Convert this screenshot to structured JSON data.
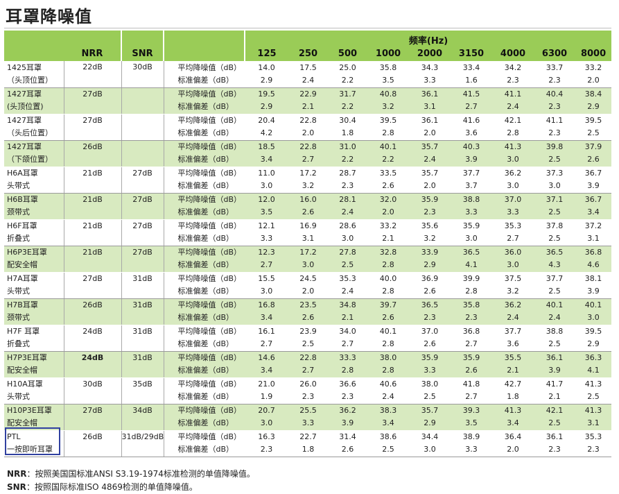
{
  "title": "耳罩降噪值",
  "header": {
    "nrr": "NRR",
    "snr": "SNR",
    "frequency_label": "频率(Hz)",
    "frequencies": [
      "125",
      "250",
      "500",
      "1000",
      "2000",
      "3150",
      "4000",
      "6300",
      "8000"
    ]
  },
  "rows": [
    {
      "name1": "1425耳罩",
      "name2": "（头顶位置）",
      "nrr": "22dB",
      "snr": "30dB",
      "m": [
        "14.0",
        "17.5",
        "25.0",
        "35.8",
        "34.3",
        "33.4",
        "34.2",
        "33.7",
        "33.2"
      ],
      "s": [
        "2.9",
        "2.4",
        "2.2",
        "3.5",
        "3.3",
        "1.6",
        "2.3",
        "2.3",
        "2.0"
      ]
    },
    {
      "name1": "1427耳罩",
      "name2": "(头顶位置)",
      "nrr": "27dB",
      "snr": "",
      "m": [
        "19.5",
        "22.9",
        "31.7",
        "40.8",
        "36.1",
        "41.5",
        "41.1",
        "40.4",
        "38.4"
      ],
      "s": [
        "2.9",
        "2.1",
        "2.2",
        "3.2",
        "3.1",
        "2.7",
        "2.4",
        "2.3",
        "2.9"
      ]
    },
    {
      "name1": "1427耳罩",
      "name2": "（头后位置）",
      "nrr": "27dB",
      "snr": "",
      "m": [
        "20.4",
        "22.8",
        "30.4",
        "39.5",
        "36.1",
        "41.6",
        "42.1",
        "41.1",
        "39.5"
      ],
      "s": [
        "4.2",
        "2.0",
        "1.8",
        "2.8",
        "2.0",
        "3.6",
        "2.8",
        "2.3",
        "2.5"
      ]
    },
    {
      "name1": "1427耳罩",
      "name2": "（下颌位置）",
      "nrr": "26dB",
      "snr": "",
      "m": [
        "18.5",
        "22.8",
        "31.0",
        "40.1",
        "35.7",
        "40.3",
        "41.3",
        "39.8",
        "37.9"
      ],
      "s": [
        "3.4",
        "2.7",
        "2.2",
        "2.2",
        "2.4",
        "3.9",
        "3.0",
        "2.5",
        "2.6"
      ]
    },
    {
      "name1": "H6A耳罩",
      "name2": "头带式",
      "nrr": "21dB",
      "snr": "27dB",
      "m": [
        "11.0",
        "17.2",
        "28.7",
        "33.5",
        "35.7",
        "37.7",
        "36.2",
        "37.3",
        "36.7"
      ],
      "s": [
        "3.0",
        "3.2",
        "2.3",
        "2.6",
        "2.0",
        "3.7",
        "3.0",
        "3.0",
        "3.9"
      ]
    },
    {
      "name1": "H6B耳罩",
      "name2": "颈带式",
      "nrr": "21dB",
      "snr": "27dB",
      "m": [
        "12.0",
        "16.0",
        "28.1",
        "32.0",
        "35.9",
        "38.8",
        "37.0",
        "37.1",
        "36.7"
      ],
      "s": [
        "3.5",
        "2.6",
        "2.4",
        "2.0",
        "2.3",
        "3.3",
        "3.3",
        "2.5",
        "3.4"
      ]
    },
    {
      "name1": "H6F耳罩",
      "name2": "折叠式",
      "nrr": "21dB",
      "snr": "27dB",
      "m": [
        "12.1",
        "16.9",
        "28.6",
        "33.2",
        "35.6",
        "35.9",
        "35.3",
        "37.8",
        "37.2"
      ],
      "s": [
        "3.3",
        "3.1",
        "3.0",
        "2.1",
        "3.2",
        "3.0",
        "2.7",
        "2.5",
        "3.1"
      ]
    },
    {
      "name1": "H6P3E耳罩",
      "name2": "配安全帽",
      "nrr": "21dB",
      "snr": "27dB",
      "m": [
        "12.3",
        "17.2",
        "27.8",
        "32.8",
        "33.9",
        "36.5",
        "36.0",
        "36.5",
        "36.8"
      ],
      "s": [
        "2.7",
        "3.0",
        "2.5",
        "2.8",
        "2.9",
        "4.1",
        "3.0",
        "4.3",
        "4.6"
      ]
    },
    {
      "name1": "H7A耳罩",
      "name2": "头带式",
      "nrr": "27dB",
      "snr": "31dB",
      "m": [
        "15.5",
        "24.5",
        "35.3",
        "40.0",
        "36.9",
        "39.9",
        "37.5",
        "37.7",
        "38.1"
      ],
      "s": [
        "3.0",
        "2.0",
        "2.4",
        "2.8",
        "2.6",
        "2.8",
        "3.2",
        "2.5",
        "3.9"
      ]
    },
    {
      "name1": "H7B耳罩",
      "name2": "颈带式",
      "nrr": "26dB",
      "snr": "31dB",
      "m": [
        "16.8",
        "23.5",
        "34.8",
        "39.7",
        "36.5",
        "35.8",
        "36.2",
        "40.1",
        "40.1"
      ],
      "s": [
        "3.4",
        "2.6",
        "2.1",
        "2.6",
        "2.3",
        "2.3",
        "2.4",
        "2.4",
        "3.0"
      ]
    },
    {
      "name1": " H7F 耳罩",
      "name2": " 折叠式",
      "nrr": "24dB",
      "snr": "31dB",
      "m": [
        "16.1",
        "23.9",
        "34.0",
        "40.1",
        "37.0",
        "36.8",
        "37.7",
        "38.8",
        "39.5"
      ],
      "s": [
        "2.7",
        "2.5",
        "2.7",
        "2.8",
        "2.6",
        "2.7",
        "3.6",
        "2.5",
        "2.9"
      ]
    },
    {
      "name1": "H7P3E耳罩",
      "name2": "配安全帽",
      "nrr": "24dB",
      "snr": "31dB",
      "nrr_bold": true,
      "m": [
        "14.6",
        "22.8",
        "33.3",
        "38.0",
        "35.9",
        "35.9",
        "35.5",
        "36.1",
        "36.3"
      ],
      "s": [
        "3.4",
        "2.7",
        "2.8",
        "2.8",
        "3.3",
        "2.6",
        "2.1",
        "3.9",
        "4.1"
      ]
    },
    {
      "name1": "H10A耳罩",
      "name2": "头带式",
      "nrr": "30dB",
      "snr": "35dB",
      "m": [
        "21.0",
        "26.0",
        "36.6",
        "40.6",
        "38.0",
        "41.8",
        "42.7",
        "41.7",
        "41.3"
      ],
      "s": [
        "1.9",
        "2.3",
        "2.3",
        "2.4",
        "2.5",
        "2.7",
        "1.8",
        "2.1",
        "2.5"
      ]
    },
    {
      "name1": "H10P3E耳罩",
      "name2": "配安全帽",
      "nrr": "27dB",
      "snr": "34dB",
      "m": [
        "20.7",
        "25.5",
        "36.2",
        "38.3",
        "35.7",
        "39.3",
        "41.3",
        "42.1",
        "41.3"
      ],
      "s": [
        "3.0",
        "3.3",
        "3.9",
        "3.4",
        "2.9",
        "3.5",
        "3.4",
        "2.5",
        "3.1"
      ]
    },
    {
      "name1": "PTL",
      "name2": "一按即听耳罩",
      "nrr": "26dB",
      "snr": "31dB/29dB",
      "m": [
        "16.3",
        "22.7",
        "31.4",
        "38.6",
        "34.4",
        "38.9",
        "36.4",
        "36.1",
        "35.3"
      ],
      "s": [
        "2.3",
        "1.8",
        "2.6",
        "2.5",
        "3.0",
        "3.3",
        "2.0",
        "2.3",
        "2.3"
      ]
    }
  ],
  "desc": {
    "mean": "平均降噪值（dB）",
    "std": "标准偏差（dB）"
  },
  "footnotes": [
    {
      "key": "NRR",
      "text": "：按照美国国标准ANSI S3.19-1974标准检测的单值降噪值。"
    },
    {
      "key": "SNR",
      "text": "：按照国际标准ISO 4869检测的单值降噪值。"
    }
  ]
}
